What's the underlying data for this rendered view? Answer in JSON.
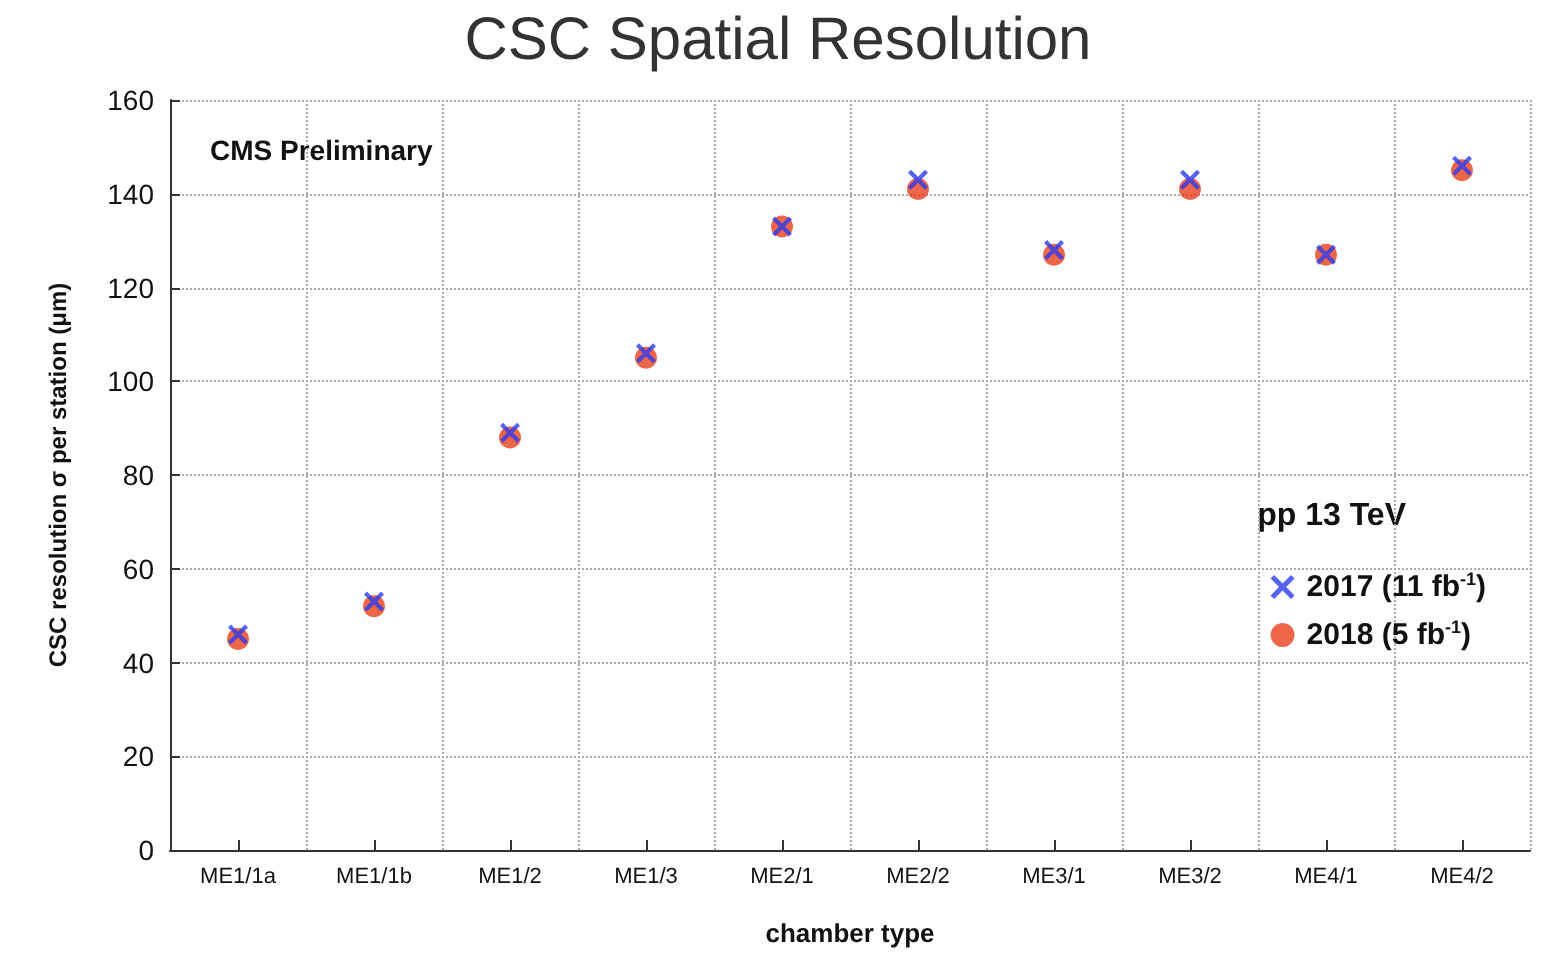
{
  "chart_data": {
    "type": "scatter",
    "title": "CSC Spatial Resolution",
    "xlabel": "chamber type",
    "ylabel": "CSC resolution σ per station (μm)",
    "legend_title": "pp 13 TeV",
    "annotations": [
      "CMS Preliminary"
    ],
    "categories": [
      "ME1/1a",
      "ME1/1b",
      "ME1/2",
      "ME1/3",
      "ME2/1",
      "ME2/2",
      "ME3/1",
      "ME3/2",
      "ME4/1",
      "ME4/2"
    ],
    "series": [
      {
        "name": "2017 (11 fb$^{-1}$)",
        "color": "#2b3cf0",
        "marker": "cross",
        "values": [
          46,
          53,
          89,
          106,
          133,
          143,
          128,
          143,
          127,
          146
        ]
      },
      {
        "name": "2018 (5 fb$^{-1}$)",
        "color": "#e8401c",
        "marker": "circle",
        "values": [
          45,
          52,
          88,
          105,
          133,
          141,
          127,
          141,
          127,
          145
        ]
      }
    ],
    "ylim": [
      0,
      160
    ],
    "yticks": [
      0,
      20,
      40,
      60,
      80,
      100,
      120,
      140,
      160
    ],
    "grid": true,
    "legend": "right"
  }
}
